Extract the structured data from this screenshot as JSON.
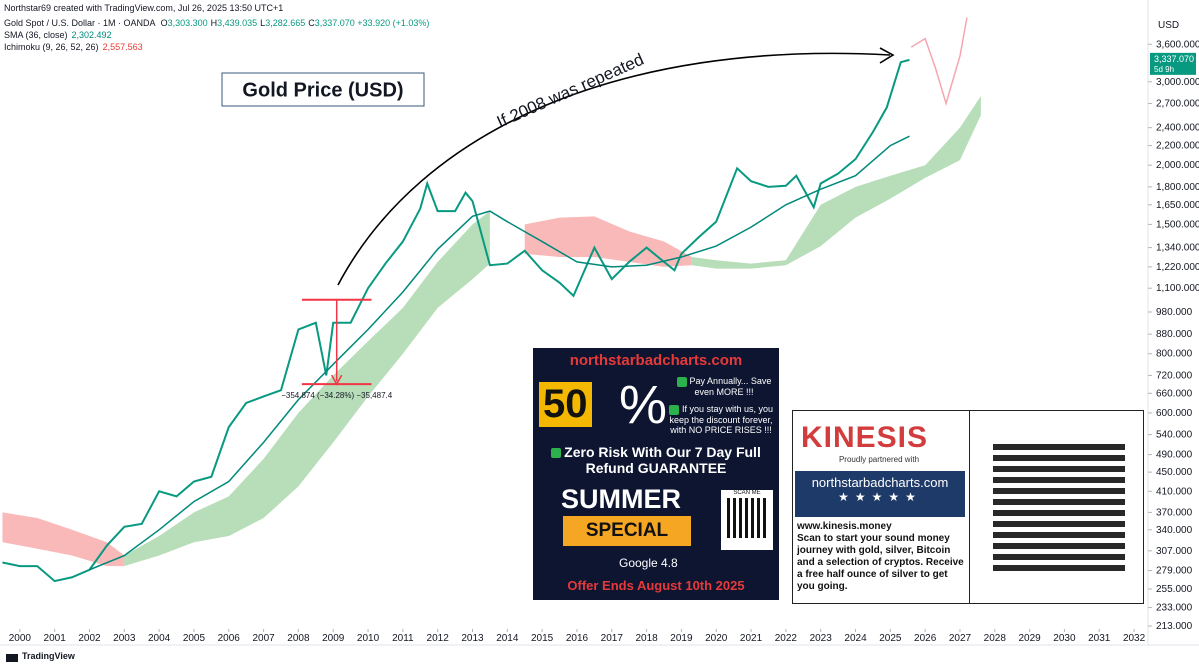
{
  "header": {
    "author_line": "Northstar69 created with TradingView.com, Jul 26, 2025 13:50 UTC+1",
    "symbol": "Gold Spot / U.S. Dollar · 1M · OANDA",
    "ohlc": [
      {
        "label": "O",
        "value": "3,303.300"
      },
      {
        "label": "H",
        "value": "3,439.035"
      },
      {
        "label": "L",
        "value": "3,282.665"
      },
      {
        "label": "C",
        "value": "3,337.070"
      }
    ],
    "change": "+33.920 (+1.03%)",
    "indicators": [
      {
        "name": "SMA (36, close)",
        "value": "2,302.492",
        "color": "#00897b"
      },
      {
        "name": "Ichimoku (9, 26, 52, 26)",
        "value": "2,557.563",
        "color": "#e53935"
      }
    ]
  },
  "chart_data": {
    "type": "line",
    "log_scale": true,
    "currency": "USD",
    "xlim": [
      1999.43,
      2032.4
    ],
    "ylim": [
      212,
      4150
    ],
    "xticks": [
      2000,
      2001,
      2002,
      2003,
      2004,
      2005,
      2006,
      2007,
      2008,
      2009,
      2010,
      2011,
      2012,
      2013,
      2014,
      2015,
      2016,
      2017,
      2018,
      2019,
      2020,
      2021,
      2022,
      2023,
      2024,
      2025,
      2026,
      2027,
      2028,
      2029,
      2030,
      2031,
      2032
    ],
    "yticks": [
      {
        "value": 213,
        "label": "213.000"
      },
      {
        "value": 233,
        "label": "233.000"
      },
      {
        "value": 255,
        "label": "255.000"
      },
      {
        "value": 279,
        "label": "279.000"
      },
      {
        "value": 307,
        "label": "307.000"
      },
      {
        "value": 340,
        "label": "340.000"
      },
      {
        "value": 370,
        "label": "370.000"
      },
      {
        "value": 410,
        "label": "410.000"
      },
      {
        "value": 450,
        "label": "450.000"
      },
      {
        "value": 490,
        "label": "490.000"
      },
      {
        "value": 540,
        "label": "540.000"
      },
      {
        "value": 600,
        "label": "600.000"
      },
      {
        "value": 660,
        "label": "660.000"
      },
      {
        "value": 720,
        "label": "720.000"
      },
      {
        "value": 800,
        "label": "800.000"
      },
      {
        "value": 880,
        "label": "880.000"
      },
      {
        "value": 980,
        "label": "980.000"
      },
      {
        "value": 1100,
        "label": "1,100.000"
      },
      {
        "value": 1220,
        "label": "1,220.000"
      },
      {
        "value": 1340,
        "label": "1,340.000"
      },
      {
        "value": 1500,
        "label": "1,500.000"
      },
      {
        "value": 1650,
        "label": "1,650.000"
      },
      {
        "value": 1800,
        "label": "1,800.000"
      },
      {
        "value": 2000,
        "label": "2,000.000"
      },
      {
        "value": 2200,
        "label": "2,200.000"
      },
      {
        "value": 2400,
        "label": "2,400.000"
      },
      {
        "value": 2700,
        "label": "2,700.000"
      },
      {
        "value": 3000,
        "label": "3,000.000"
      },
      {
        "value": 3600,
        "label": "3,600.000"
      }
    ],
    "series": [
      {
        "name": "Gold price",
        "color": "#089981",
        "x": [
          1999.5,
          2000,
          2000.5,
          2001,
          2001.5,
          2002,
          2002.5,
          2003,
          2003.5,
          2004,
          2004.5,
          2005,
          2005.5,
          2006,
          2006.5,
          2007,
          2007.5,
          2008,
          2008.5,
          2008.8,
          2009,
          2009.5,
          2010,
          2010.5,
          2011,
          2011.5,
          2011.7,
          2012,
          2012.5,
          2012.8,
          2013,
          2013.5,
          2014,
          2014.5,
          2015,
          2015.5,
          2015.9,
          2016.5,
          2017,
          2017.5,
          2018,
          2018.5,
          2018.8,
          2019,
          2019.5,
          2020,
          2020.6,
          2021,
          2021.5,
          2022,
          2022.3,
          2022.8,
          2023,
          2023.5,
          2024,
          2024.5,
          2024.9,
          2025,
          2025.3,
          2025.55
        ],
        "values": [
          290,
          285,
          285,
          265,
          270,
          280,
          315,
          345,
          350,
          410,
          400,
          430,
          440,
          560,
          630,
          650,
          670,
          900,
          930,
          720,
          930,
          930,
          1100,
          1240,
          1380,
          1620,
          1830,
          1600,
          1600,
          1750,
          1680,
          1230,
          1240,
          1320,
          1200,
          1130,
          1060,
          1340,
          1150,
          1250,
          1340,
          1250,
          1200,
          1300,
          1410,
          1520,
          1970,
          1850,
          1800,
          1810,
          1900,
          1630,
          1830,
          1920,
          2060,
          2350,
          2650,
          2800,
          3300,
          3337.07
        ]
      },
      {
        "name": "SMA (36, close)",
        "color": "#00897b",
        "x": [
          2002,
          2003,
          2004,
          2005,
          2006,
          2007,
          2008,
          2009,
          2010,
          2011,
          2012,
          2013,
          2013.5,
          2014,
          2015,
          2016,
          2017,
          2018,
          2019,
          2020,
          2021,
          2022,
          2023,
          2024,
          2025,
          2025.55
        ],
        "values": [
          280,
          300,
          340,
          390,
          430,
          520,
          640,
          760,
          900,
          1080,
          1330,
          1560,
          1600,
          1520,
          1380,
          1250,
          1220,
          1230,
          1280,
          1350,
          1480,
          1650,
          1780,
          1900,
          2200,
          2302.492
        ]
      },
      {
        "name": "If 2008 was repeated",
        "color": "#f4a7b0",
        "x": [
          2025.6,
          2026,
          2026.3,
          2026.6,
          2027,
          2027.2
        ],
        "values": [
          3550,
          3700,
          3200,
          2700,
          3400,
          4100
        ]
      }
    ],
    "clouds": [
      {
        "color": "#f7a8a8",
        "x": [
          1999.5,
          2000.5,
          2001.5,
          2002.5,
          2003
        ],
        "upper": [
          370,
          360,
          340,
          320,
          300
        ],
        "lower": [
          320,
          310,
          300,
          285,
          285
        ]
      },
      {
        "color": "#a5d6a7",
        "x": [
          2003,
          2004,
          2005,
          2006,
          2007,
          2008,
          2009,
          2010,
          2011,
          2012,
          2013,
          2013.5
        ],
        "upper": [
          300,
          330,
          370,
          400,
          480,
          600,
          720,
          850,
          1000,
          1250,
          1500,
          1600
        ],
        "lower": [
          285,
          300,
          320,
          330,
          360,
          420,
          520,
          650,
          800,
          1000,
          1150,
          1240
        ]
      },
      {
        "color": "#f7a8a8",
        "x": [
          2014.5,
          2015.5,
          2016.5,
          2017.5,
          2018.5,
          2019.3
        ],
        "upper": [
          1500,
          1550,
          1560,
          1450,
          1380,
          1280
        ],
        "lower": [
          1300,
          1280,
          1280,
          1250,
          1220,
          1230
        ]
      },
      {
        "color": "#a5d6a7",
        "x": [
          2019.3,
          2020,
          2021,
          2022,
          2023,
          2024,
          2025,
          2026,
          2027,
          2027.6
        ],
        "upper": [
          1280,
          1260,
          1240,
          1260,
          1650,
          1800,
          1900,
          2000,
          2400,
          2800
        ],
        "lower": [
          1230,
          1210,
          1210,
          1230,
          1350,
          1550,
          1700,
          1880,
          2050,
          2550
        ]
      }
    ],
    "price_tag": {
      "value": 3337.07,
      "label": "3,337.070",
      "countdown": "5d 9h",
      "color": "#089981"
    },
    "measure": {
      "x": [
        2008.1,
        2010.1
      ],
      "top": 1040,
      "bottom": 690,
      "color": "#f23645",
      "label": "−354.874 (−34.28%) −35,487.4"
    },
    "title": "Gold Price (USD)",
    "arrow_text": "If 2008 was repeated"
  },
  "ad": {
    "site": "northstarbadcharts.com",
    "percent": "50",
    "percent_sign": "%",
    "bullets": [
      "Pay Annually... Save even MORE !!!",
      "If you stay with us, you keep the discount forever, with NO PRICE RISES !!!"
    ],
    "guarantee": "Zero Risk With Our 7 Day Full Refund GUARANTEE",
    "summer": "SUMMER",
    "special": "SPECIAL",
    "scan": "SCAN ME",
    "google": "Google",
    "rating": "4.8",
    "offer": "Offer Ends August 10th 2025"
  },
  "kinesis": {
    "brand": "KINESIS",
    "partner": "Proudly partnered with",
    "site": "northstarbadcharts.com",
    "url": "www.kinesis.money",
    "text": "Scan to start your sound money journey with gold, silver, Bitcoin and a selection of cryptos. Receive a free half ounce of silver to get you going."
  },
  "footer": "TradingView"
}
